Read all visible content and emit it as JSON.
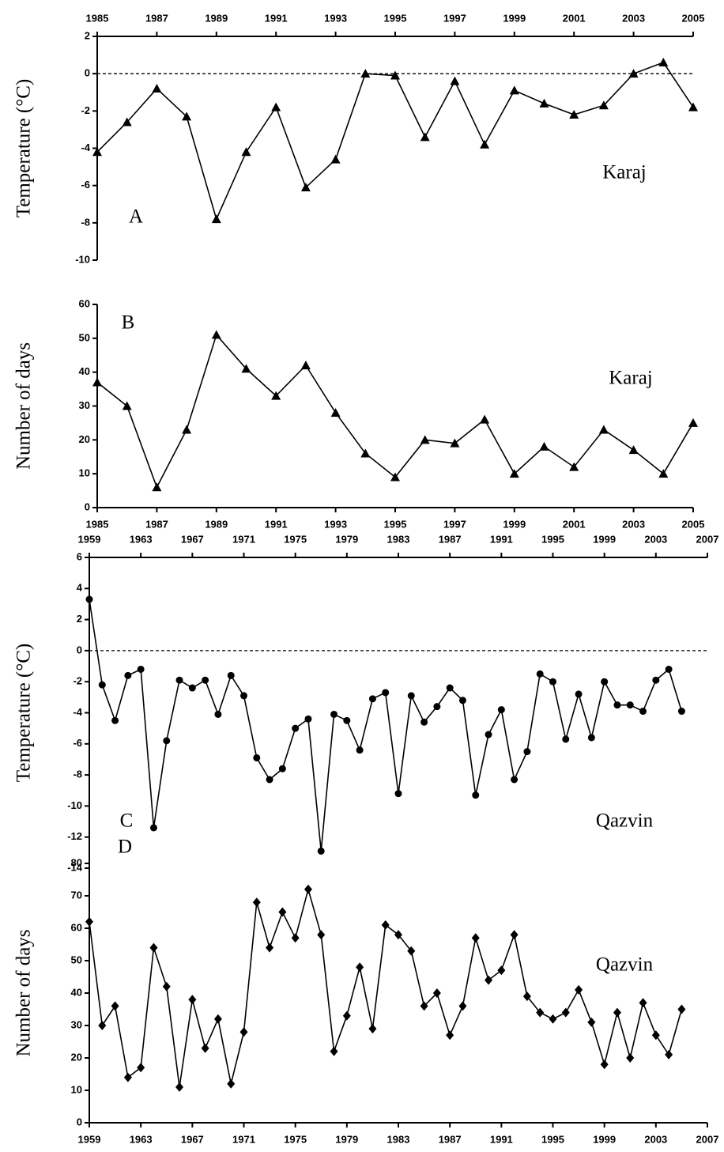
{
  "chart_data": [
    {
      "type": "line",
      "y_label": "Temperature (°C)",
      "panel_label": "A",
      "annotation": "Karaj",
      "color": "#000000",
      "marker": "triangle",
      "xaxis_position": "top",
      "reference_line": 0,
      "x": [
        1985,
        1986,
        1987,
        1988,
        1989,
        1990,
        1991,
        1992,
        1993,
        1994,
        1995,
        1996,
        1997,
        1998,
        1999,
        2000,
        2001,
        2002,
        2003,
        2004,
        2005
      ],
      "values": [
        -4.2,
        -2.6,
        -0.8,
        -2.3,
        -7.8,
        -4.2,
        -1.8,
        -6.1,
        -4.6,
        0.0,
        -0.1,
        -3.4,
        -0.4,
        -3.8,
        -0.9,
        -1.6,
        -2.2,
        -1.7,
        0.0,
        0.6,
        -1.8
      ],
      "xlim": [
        1985,
        2005
      ],
      "xticks": [
        1985,
        1987,
        1989,
        1991,
        1993,
        1995,
        1997,
        1999,
        2001,
        2003,
        2005
      ],
      "ylim": [
        -10,
        2
      ],
      "yticks": [
        -10,
        -8,
        -6,
        -4,
        -2,
        0,
        2
      ]
    },
    {
      "type": "line",
      "y_label": "Number of days",
      "panel_label": "B",
      "annotation": "Karaj",
      "color": "#000000",
      "marker": "triangle",
      "xaxis_position": "bottom",
      "x": [
        1985,
        1986,
        1987,
        1988,
        1989,
        1990,
        1991,
        1992,
        1993,
        1994,
        1995,
        1996,
        1997,
        1998,
        1999,
        2000,
        2001,
        2002,
        2003,
        2004,
        2005
      ],
      "values": [
        37,
        30,
        6,
        23,
        51,
        41,
        33,
        42,
        28,
        16,
        9,
        20,
        19,
        26,
        10,
        18,
        12,
        23,
        17,
        10,
        25
      ],
      "xlim": [
        1985,
        2005
      ],
      "xticks": [
        1985,
        1987,
        1989,
        1991,
        1993,
        1995,
        1997,
        1999,
        2001,
        2003,
        2005
      ],
      "ylim": [
        0,
        60
      ],
      "yticks": [
        0,
        10,
        20,
        30,
        40,
        50,
        60
      ]
    },
    {
      "type": "line",
      "y_label": "Temperature (°C)",
      "panel_label": "C",
      "annotation": "Qazvin",
      "color": "#000000",
      "marker": "circle",
      "xaxis_position": "top",
      "reference_line": 0,
      "x": [
        1959,
        1960,
        1961,
        1962,
        1963,
        1964,
        1965,
        1966,
        1967,
        1968,
        1969,
        1970,
        1971,
        1972,
        1973,
        1974,
        1975,
        1976,
        1977,
        1978,
        1979,
        1980,
        1981,
        1982,
        1983,
        1984,
        1985,
        1986,
        1987,
        1988,
        1989,
        1990,
        1991,
        1992,
        1993,
        1994,
        1995,
        1996,
        1997,
        1998,
        1999,
        2000,
        2001,
        2002,
        2003,
        2004,
        2005
      ],
      "values": [
        3.3,
        -2.2,
        -4.5,
        -1.6,
        -1.2,
        -11.4,
        -5.8,
        -1.9,
        -2.4,
        -1.9,
        -4.1,
        -1.6,
        -2.9,
        -6.9,
        -8.3,
        -7.6,
        -5.0,
        -4.4,
        -12.9,
        -4.1,
        -4.5,
        -6.4,
        -3.1,
        -2.7,
        -9.2,
        -2.9,
        -4.6,
        -3.6,
        -2.4,
        -3.2,
        -9.3,
        -5.4,
        -3.8,
        -8.3,
        -6.5,
        -1.5,
        -2.0,
        -5.7,
        -2.8,
        -5.6,
        -2.0,
        -3.5,
        -3.5,
        -3.9,
        -1.9,
        -1.2,
        -3.9
      ],
      "xlim": [
        1959,
        2007
      ],
      "xticks": [
        1959,
        1963,
        1967,
        1971,
        1975,
        1979,
        1983,
        1987,
        1991,
        1995,
        1999,
        2003,
        2007
      ],
      "ylim": [
        -14,
        6
      ],
      "yticks": [
        -14,
        -12,
        -10,
        -8,
        -6,
        -4,
        -2,
        0,
        2,
        4,
        6
      ]
    },
    {
      "type": "line",
      "y_label": "Number of days",
      "panel_label": "D",
      "annotation": "Qazvin",
      "color": "#000000",
      "marker": "diamond",
      "xaxis_position": "bottom",
      "x": [
        1959,
        1960,
        1961,
        1962,
        1963,
        1964,
        1965,
        1966,
        1967,
        1968,
        1969,
        1970,
        1971,
        1972,
        1973,
        1974,
        1975,
        1976,
        1977,
        1978,
        1979,
        1980,
        1981,
        1982,
        1983,
        1984,
        1985,
        1986,
        1987,
        1988,
        1989,
        1990,
        1991,
        1992,
        1993,
        1994,
        1995,
        1996,
        1997,
        1998,
        1999,
        2000,
        2001,
        2002,
        2003,
        2004,
        2005
      ],
      "values": [
        62,
        30,
        36,
        14,
        17,
        54,
        42,
        11,
        38,
        23,
        32,
        12,
        28,
        68,
        54,
        65,
        57,
        72,
        58,
        22,
        33,
        48,
        29,
        61,
        58,
        53,
        36,
        40,
        27,
        36,
        57,
        44,
        47,
        58,
        39,
        34,
        32,
        34,
        41,
        31,
        18,
        34,
        20,
        37,
        27,
        21,
        35
      ],
      "xlim": [
        1959,
        2007
      ],
      "xticks": [
        1959,
        1963,
        1967,
        1971,
        1975,
        1979,
        1983,
        1987,
        1991,
        1995,
        1999,
        2003,
        2007
      ],
      "ylim": [
        0,
        80
      ],
      "yticks": [
        0,
        10,
        20,
        30,
        40,
        50,
        60,
        70,
        80
      ]
    }
  ]
}
